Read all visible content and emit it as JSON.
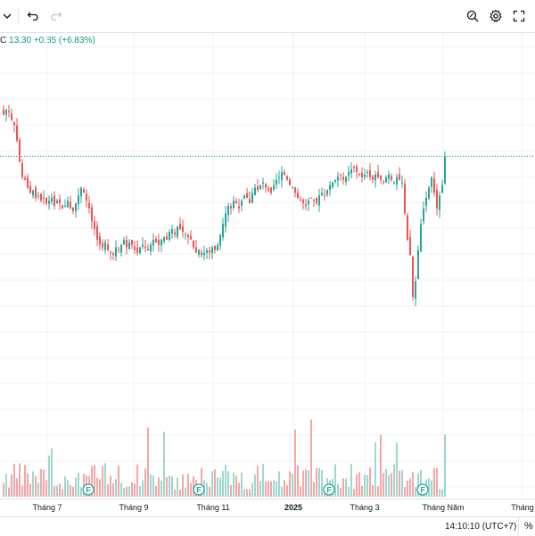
{
  "toolbar": {
    "dropdown_icon": "chevron-down-icon",
    "undo_icon": "undo-icon",
    "redo_icon": "redo-icon",
    "zoom_icon": "zoom-icon",
    "settings_icon": "gear-icon",
    "fullscreen_icon": "fullscreen-icon"
  },
  "legend": {
    "symbol_fragment": "C",
    "close": "13.30",
    "change": "+0.85",
    "change_pct": "(+6.83%)"
  },
  "colors": {
    "up": "#26a69a",
    "down": "#ef5350",
    "up_volume": "#9fd6ce",
    "down_volume": "#f5a6a6",
    "price_line": "#089981",
    "grid": "#f0f3fa"
  },
  "time_axis": {
    "labels": [
      "Tháng 7",
      "Tháng 9",
      "Tháng 11",
      "2025",
      "Tháng 3",
      "Tháng Năm",
      "Tháng"
    ]
  },
  "status_bar": {
    "clock": "14:10:10 (UTC+7)",
    "percent_toggle": "%"
  },
  "event_marker_label": "F",
  "chart_data": {
    "type": "candlestick",
    "last_close": 13.3,
    "last_change": 0.85,
    "last_change_pct": 6.83,
    "date_range": [
      "2024-06",
      "2025-05"
    ],
    "price_range_visible": [
      9.5,
      15.5
    ],
    "grid": true,
    "dividend_markers": [
      "2024-08",
      "2024-10",
      "2025-02",
      "2025-04"
    ],
    "closes": [
      14.1,
      14.2,
      14.15,
      14.0,
      13.9,
      13.6,
      13.2,
      12.9,
      12.85,
      12.7,
      12.6,
      12.65,
      12.5,
      12.55,
      12.45,
      12.5,
      12.4,
      12.45,
      12.5,
      12.35,
      12.45,
      12.4,
      12.3,
      12.35,
      12.45,
      12.3,
      12.25,
      12.4,
      12.55,
      12.7,
      12.6,
      12.45,
      12.3,
      12.05,
      11.9,
      11.7,
      11.6,
      11.55,
      11.65,
      11.5,
      11.45,
      11.4,
      11.55,
      11.5,
      11.6,
      11.7,
      11.55,
      11.65,
      11.6,
      11.5,
      11.45,
      11.55,
      11.6,
      11.55,
      11.5,
      11.6,
      11.7,
      11.65,
      11.6,
      11.7,
      11.75,
      11.7,
      11.85,
      11.9,
      11.8,
      11.95,
      11.9,
      11.85,
      11.8,
      11.75,
      11.7,
      11.55,
      11.45,
      11.5,
      11.4,
      11.45,
      11.5,
      11.45,
      11.55,
      11.5,
      11.6,
      11.8,
      12.0,
      12.2,
      12.35,
      12.3,
      12.45,
      12.4,
      12.3,
      12.45,
      12.55,
      12.5,
      12.4,
      12.6,
      12.7,
      12.65,
      12.75,
      12.8,
      12.7,
      12.65,
      12.6,
      12.75,
      12.85,
      12.9,
      13.0,
      12.95,
      12.85,
      12.75,
      12.7,
      12.6,
      12.5,
      12.45,
      12.4,
      12.35,
      12.45,
      12.5,
      12.45,
      12.4,
      12.55,
      12.6,
      12.55,
      12.65,
      12.75,
      12.8,
      12.85,
      12.9,
      12.95,
      12.85,
      12.9,
      13.0,
      13.05,
      13.1,
      13.0,
      12.95,
      12.9,
      12.95,
      13.0,
      12.9,
      12.85,
      12.95,
      12.9,
      12.85,
      12.8,
      12.9,
      12.95,
      12.85,
      12.8,
      12.9,
      12.85,
      12.8,
      12.2,
      11.7,
      11.4,
      10.6,
      10.9,
      11.5,
      12.0,
      12.3,
      12.5,
      12.7,
      12.9,
      12.6,
      12.3,
      12.55,
      12.75,
      13.3
    ]
  }
}
